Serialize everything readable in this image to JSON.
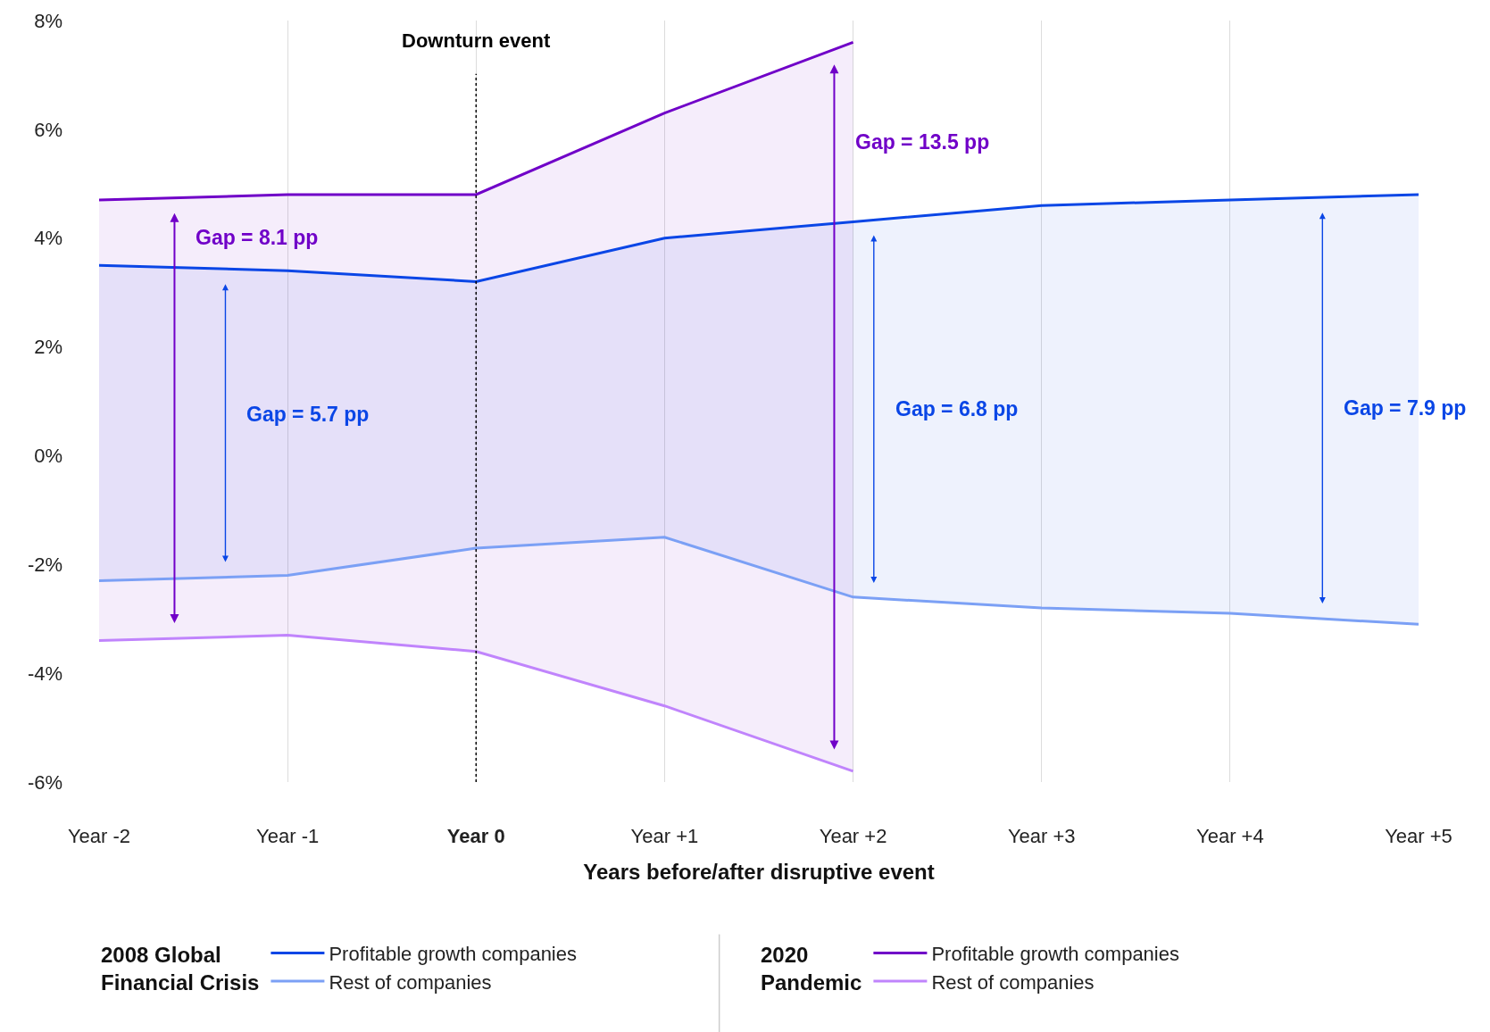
{
  "chart_data": {
    "type": "line",
    "x": [
      -2,
      -1,
      0,
      1,
      2,
      3,
      4,
      5
    ],
    "xlim": [
      -2,
      5
    ],
    "xticks": [
      {
        "value": -2,
        "label": "Year -2"
      },
      {
        "value": -1,
        "label": "Year -1"
      },
      {
        "value": 0,
        "label": "Year 0"
      },
      {
        "value": 1,
        "label": "Year +1"
      },
      {
        "value": 2,
        "label": "Year +2"
      },
      {
        "value": 3,
        "label": "Year +3"
      },
      {
        "value": 4,
        "label": "Year +4"
      },
      {
        "value": 5,
        "label": "Year +5"
      }
    ],
    "ylim": [
      -6,
      8
    ],
    "yticks": [
      {
        "value": -6,
        "label": "-6%"
      },
      {
        "value": -4,
        "label": "-4%"
      },
      {
        "value": -2,
        "label": "-2%"
      },
      {
        "value": 0,
        "label": "0%"
      },
      {
        "value": 2,
        "label": "2%"
      },
      {
        "value": 4,
        "label": "4%"
      },
      {
        "value": 6,
        "label": "6%"
      },
      {
        "value": 8,
        "label": "8%"
      }
    ],
    "xlabel": "Years before/after disruptive event",
    "legend_title": [
      "2008 Global Financial Crisis",
      "2020 Pandemic"
    ],
    "series": [
      {
        "name": "Profitable growth companies",
        "color": "#0a46e6",
        "values": [
          3.5,
          3.4,
          3.2,
          4.0,
          4.3,
          4.6,
          4.7,
          4.8
        ],
        "upper": [
          3.5,
          3.4,
          3.2,
          4.0,
          4.3,
          4.6,
          4.7,
          4.8
        ],
        "lower": [
          -2.3,
          -2.2,
          -1.7,
          -1.5,
          -2.6,
          -2.8,
          -2.9,
          -3.1
        ]
      },
      {
        "name": "Rest of companies",
        "color": "#7ba0f5",
        "values": [
          -2.3,
          -2.2,
          -1.7,
          -1.5,
          -2.6,
          -2.8,
          -2.9,
          -3.1
        ]
      },
      {
        "name": "Profitable growth companies",
        "color": "#7000c8",
        "values": [
          4.7,
          4.8,
          4.8,
          6.3,
          7.6,
          null,
          null,
          null
        ],
        "upper": [
          4.7,
          4.8,
          4.8,
          6.3,
          7.6,
          null,
          null,
          null
        ],
        "lower": [
          -3.4,
          -3.3,
          -3.6,
          -4.6,
          -5.8,
          null,
          null,
          null
        ]
      },
      {
        "name": "Rest of companies",
        "color": "#c084fc",
        "values": [
          -3.4,
          -3.3,
          -3.6,
          -4.6,
          -5.8,
          null,
          null,
          null
        ]
      }
    ],
    "ref_lines": [
      {
        "axis": "x",
        "value": 0,
        "label": "Downturn event",
        "line_style": "dotted",
        "color": "#000000"
      }
    ],
    "annotations": [
      "Gap = 8.1 pp",
      "Gap = 5.7 pp",
      "Gap = 13.5 pp",
      "Gap = 6.8 pp",
      "Gap = 7.9 pp"
    ],
    "grid": "x",
    "legend": "bottom",
    "marker": "none",
    "line_style": "solid"
  }
}
